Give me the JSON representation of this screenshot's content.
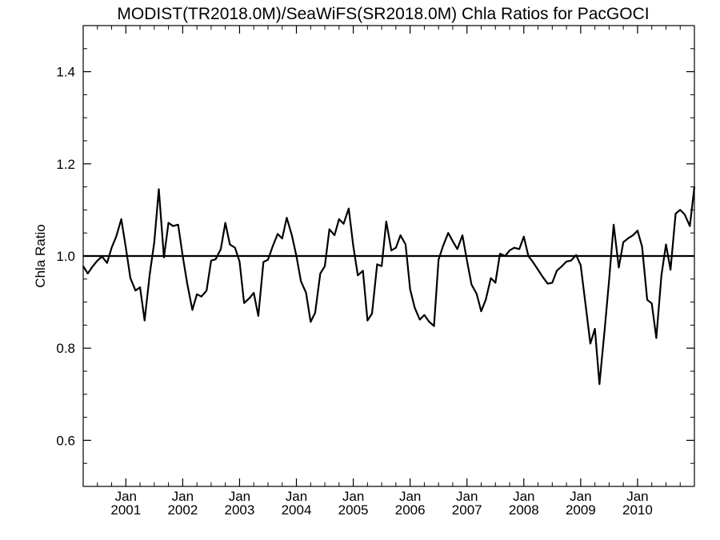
{
  "chart_data": {
    "type": "line",
    "title": "MODIST(TR2018.0M)/SeaWiFS(SR2018.0M)  Chla Ratios for PacGOCI",
    "ylabel": "Chla Ratio",
    "xlabel": "",
    "ylim": [
      0.5,
      1.5
    ],
    "xlim": [
      2000.25,
      2011.0
    ],
    "y_ticks": [
      0.6,
      0.8,
      1.0,
      1.2,
      1.4
    ],
    "y_tick_labels": [
      "0.6",
      "0.8",
      "1.0",
      "1.2",
      "1.4"
    ],
    "x_ticks": [
      {
        "x": 2001.0,
        "month": "Jan",
        "year": "2001"
      },
      {
        "x": 2002.0,
        "month": "Jan",
        "year": "2002"
      },
      {
        "x": 2003.0,
        "month": "Jan",
        "year": "2003"
      },
      {
        "x": 2004.0,
        "month": "Jan",
        "year": "2004"
      },
      {
        "x": 2005.0,
        "month": "Jan",
        "year": "2005"
      },
      {
        "x": 2006.0,
        "month": "Jan",
        "year": "2006"
      },
      {
        "x": 2007.0,
        "month": "Jan",
        "year": "2007"
      },
      {
        "x": 2008.0,
        "month": "Jan",
        "year": "2008"
      },
      {
        "x": 2009.0,
        "month": "Jan",
        "year": "2009"
      },
      {
        "x": 2010.0,
        "month": "Jan",
        "year": "2010"
      }
    ],
    "reference_line": 1.0,
    "grid": false,
    "series": [
      {
        "color": "#000000",
        "points": [
          [
            2000.25,
            0.978
          ],
          [
            2000.33,
            0.962
          ],
          [
            2000.42,
            0.978
          ],
          [
            2000.5,
            0.99
          ],
          [
            2000.58,
            0.999
          ],
          [
            2000.67,
            0.985
          ],
          [
            2000.75,
            1.018
          ],
          [
            2000.83,
            1.042
          ],
          [
            2000.92,
            1.08
          ],
          [
            2001.0,
            1.018
          ],
          [
            2001.08,
            0.952
          ],
          [
            2001.17,
            0.925
          ],
          [
            2001.25,
            0.932
          ],
          [
            2001.33,
            0.86
          ],
          [
            2001.42,
            0.96
          ],
          [
            2001.5,
            1.03
          ],
          [
            2001.58,
            1.145
          ],
          [
            2001.67,
            0.997
          ],
          [
            2001.75,
            1.072
          ],
          [
            2001.83,
            1.065
          ],
          [
            2001.92,
            1.068
          ],
          [
            2002.0,
            1.0
          ],
          [
            2002.08,
            0.94
          ],
          [
            2002.17,
            0.883
          ],
          [
            2002.25,
            0.917
          ],
          [
            2002.33,
            0.912
          ],
          [
            2002.42,
            0.925
          ],
          [
            2002.5,
            0.99
          ],
          [
            2002.58,
            0.993
          ],
          [
            2002.67,
            1.015
          ],
          [
            2002.75,
            1.072
          ],
          [
            2002.83,
            1.025
          ],
          [
            2002.92,
            1.018
          ],
          [
            2003.0,
            0.988
          ],
          [
            2003.08,
            0.898
          ],
          [
            2003.17,
            0.908
          ],
          [
            2003.25,
            0.92
          ],
          [
            2003.33,
            0.87
          ],
          [
            2003.42,
            0.987
          ],
          [
            2003.5,
            0.992
          ],
          [
            2003.58,
            1.02
          ],
          [
            2003.67,
            1.048
          ],
          [
            2003.75,
            1.038
          ],
          [
            2003.83,
            1.083
          ],
          [
            2003.92,
            1.045
          ],
          [
            2004.0,
            1.0
          ],
          [
            2004.08,
            0.945
          ],
          [
            2004.17,
            0.92
          ],
          [
            2004.25,
            0.857
          ],
          [
            2004.33,
            0.877
          ],
          [
            2004.42,
            0.962
          ],
          [
            2004.5,
            0.978
          ],
          [
            2004.58,
            1.058
          ],
          [
            2004.67,
            1.045
          ],
          [
            2004.75,
            1.08
          ],
          [
            2004.83,
            1.07
          ],
          [
            2004.92,
            1.103
          ],
          [
            2005.0,
            1.022
          ],
          [
            2005.08,
            0.958
          ],
          [
            2005.17,
            0.968
          ],
          [
            2005.25,
            0.86
          ],
          [
            2005.33,
            0.875
          ],
          [
            2005.42,
            0.982
          ],
          [
            2005.5,
            0.978
          ],
          [
            2005.58,
            1.075
          ],
          [
            2005.67,
            1.012
          ],
          [
            2005.75,
            1.018
          ],
          [
            2005.83,
            1.045
          ],
          [
            2005.92,
            1.025
          ],
          [
            2006.0,
            0.928
          ],
          [
            2006.08,
            0.888
          ],
          [
            2006.17,
            0.862
          ],
          [
            2006.25,
            0.872
          ],
          [
            2006.33,
            0.858
          ],
          [
            2006.42,
            0.848
          ],
          [
            2006.5,
            0.992
          ],
          [
            2006.58,
            1.022
          ],
          [
            2006.67,
            1.05
          ],
          [
            2006.75,
            1.032
          ],
          [
            2006.83,
            1.015
          ],
          [
            2006.92,
            1.045
          ],
          [
            2007.0,
            0.99
          ],
          [
            2007.08,
            0.938
          ],
          [
            2007.17,
            0.918
          ],
          [
            2007.25,
            0.88
          ],
          [
            2007.33,
            0.905
          ],
          [
            2007.42,
            0.952
          ],
          [
            2007.5,
            0.942
          ],
          [
            2007.58,
            1.005
          ],
          [
            2007.67,
            1.0
          ],
          [
            2007.75,
            1.012
          ],
          [
            2007.83,
            1.018
          ],
          [
            2007.92,
            1.015
          ],
          [
            2008.0,
            1.042
          ],
          [
            2008.08,
            1.0
          ],
          [
            2008.17,
            0.985
          ],
          [
            2008.25,
            0.97
          ],
          [
            2008.33,
            0.955
          ],
          [
            2008.42,
            0.94
          ],
          [
            2008.5,
            0.942
          ],
          [
            2008.58,
            0.968
          ],
          [
            2008.67,
            0.978
          ],
          [
            2008.75,
            0.988
          ],
          [
            2008.83,
            0.99
          ],
          [
            2008.92,
            1.002
          ],
          [
            2009.0,
            0.98
          ],
          [
            2009.08,
            0.9
          ],
          [
            2009.17,
            0.81
          ],
          [
            2009.25,
            0.842
          ],
          [
            2009.33,
            0.722
          ],
          [
            2009.42,
            0.838
          ],
          [
            2009.5,
            0.948
          ],
          [
            2009.58,
            1.068
          ],
          [
            2009.67,
            0.975
          ],
          [
            2009.75,
            1.03
          ],
          [
            2009.83,
            1.038
          ],
          [
            2009.92,
            1.045
          ],
          [
            2010.0,
            1.055
          ],
          [
            2010.08,
            1.02
          ],
          [
            2010.17,
            0.905
          ],
          [
            2010.25,
            0.897
          ],
          [
            2010.33,
            0.822
          ],
          [
            2010.42,
            0.958
          ],
          [
            2010.5,
            1.025
          ],
          [
            2010.58,
            0.97
          ],
          [
            2010.67,
            1.092
          ],
          [
            2010.75,
            1.1
          ],
          [
            2010.83,
            1.09
          ],
          [
            2010.92,
            1.065
          ],
          [
            2011.0,
            1.15
          ]
        ]
      }
    ]
  }
}
